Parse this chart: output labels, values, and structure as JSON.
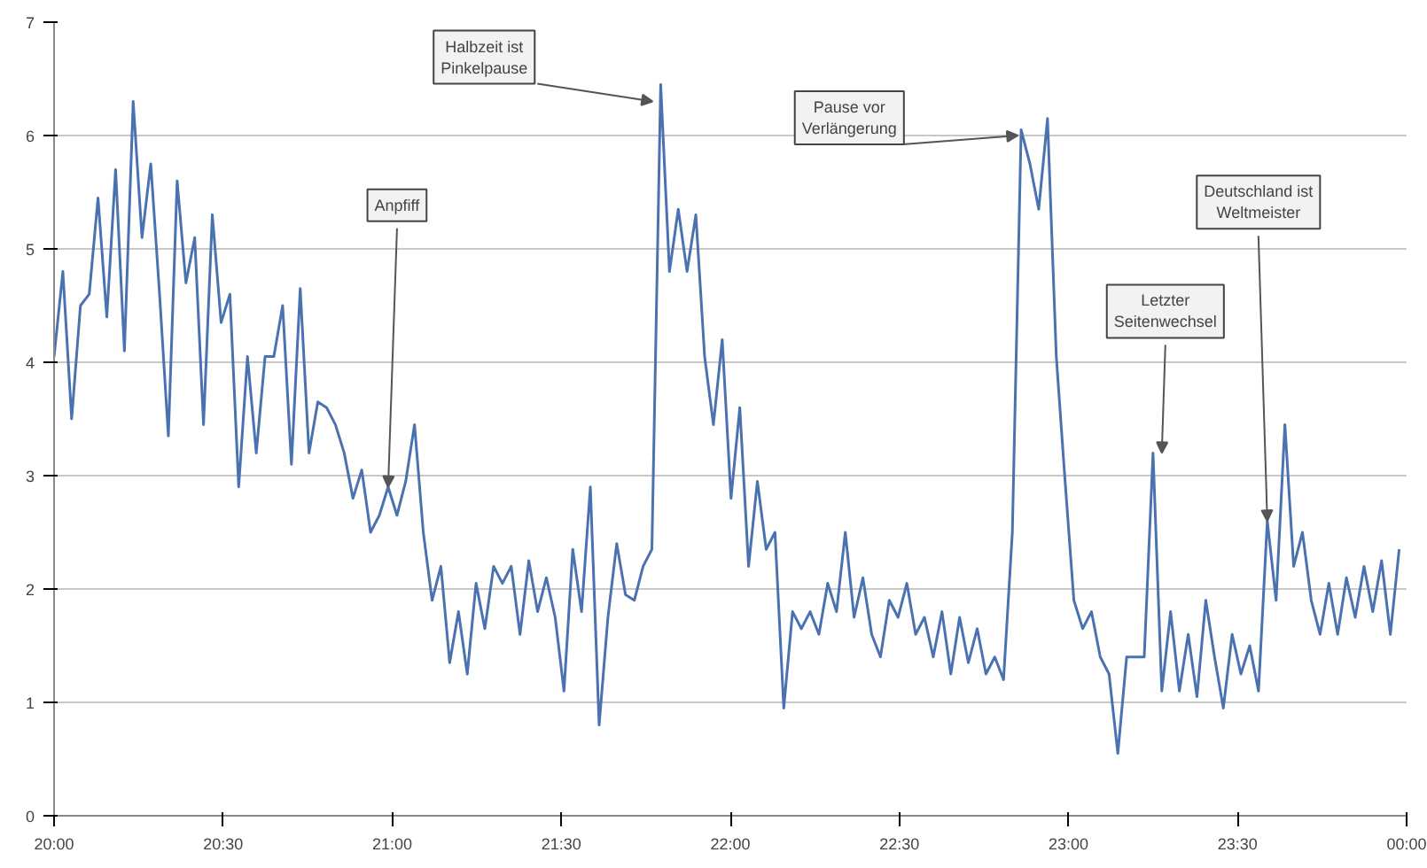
{
  "chart_data": {
    "type": "line",
    "x": [
      20.0,
      20.026,
      20.052,
      20.078,
      20.104,
      20.13,
      20.156,
      20.182,
      20.208,
      20.234,
      20.26,
      20.286,
      20.312,
      20.338,
      20.364,
      20.39,
      20.416,
      20.442,
      20.468,
      20.494,
      20.52,
      20.546,
      20.572,
      20.598,
      20.624,
      20.65,
      20.676,
      20.702,
      20.728,
      20.754,
      20.78,
      20.806,
      20.832,
      20.858,
      20.884,
      20.91,
      20.936,
      20.962,
      20.988,
      21.014,
      21.04,
      21.066,
      21.092,
      21.118,
      21.144,
      21.17,
      21.196,
      21.222,
      21.248,
      21.274,
      21.3,
      21.326,
      21.352,
      21.378,
      21.404,
      21.43,
      21.456,
      21.482,
      21.508,
      21.534,
      21.56,
      21.586,
      21.612,
      21.638,
      21.664,
      21.69,
      21.716,
      21.742,
      21.768,
      21.794,
      21.82,
      21.846,
      21.872,
      21.898,
      21.924,
      21.95,
      21.976,
      22.002,
      22.028,
      22.054,
      22.08,
      22.106,
      22.132,
      22.158,
      22.184,
      22.21,
      22.236,
      22.262,
      22.288,
      22.314,
      22.34,
      22.366,
      22.392,
      22.418,
      22.444,
      22.47,
      22.496,
      22.522,
      22.548,
      22.574,
      22.6,
      22.626,
      22.652,
      22.678,
      22.704,
      22.73,
      22.756,
      22.782,
      22.808,
      22.834,
      22.86,
      22.886,
      22.912,
      22.938,
      22.964,
      22.99,
      23.016,
      23.042,
      23.068,
      23.094,
      23.12,
      23.146,
      23.172,
      23.198,
      23.224,
      23.25,
      23.276,
      23.302,
      23.328,
      23.354,
      23.38,
      23.406,
      23.432,
      23.458,
      23.484,
      23.51,
      23.536,
      23.562,
      23.588,
      23.614,
      23.64,
      23.666,
      23.692,
      23.718,
      23.744,
      23.77,
      23.796,
      23.822,
      23.848,
      23.874,
      23.9,
      23.926,
      23.952,
      23.978
    ],
    "series": [
      {
        "color": "#4a72b0",
        "values": [
          4.05,
          4.8,
          3.5,
          4.5,
          4.6,
          5.45,
          4.4,
          5.7,
          4.1,
          6.3,
          5.1,
          5.75,
          4.6,
          3.35,
          5.6,
          4.7,
          5.1,
          3.45,
          5.3,
          4.35,
          4.6,
          2.9,
          4.05,
          3.2,
          4.05,
          4.05,
          4.5,
          3.1,
          4.65,
          3.2,
          3.65,
          3.6,
          3.45,
          3.2,
          2.8,
          3.05,
          2.5,
          2.65,
          2.9,
          2.65,
          2.95,
          3.45,
          2.5,
          1.9,
          2.2,
          1.35,
          1.8,
          1.25,
          2.05,
          1.65,
          2.2,
          2.05,
          2.2,
          1.6,
          2.25,
          1.8,
          2.1,
          1.75,
          1.1,
          2.35,
          1.8,
          2.9,
          0.8,
          1.75,
          2.4,
          1.95,
          1.9,
          2.2,
          2.35,
          6.45,
          4.8,
          5.35,
          4.8,
          5.3,
          4.05,
          3.45,
          4.2,
          2.8,
          3.6,
          2.2,
          2.95,
          2.35,
          2.5,
          0.95,
          1.8,
          1.65,
          1.8,
          1.6,
          2.05,
          1.8,
          2.5,
          1.75,
          2.1,
          1.6,
          1.4,
          1.9,
          1.75,
          2.05,
          1.6,
          1.75,
          1.4,
          1.8,
          1.25,
          1.75,
          1.35,
          1.65,
          1.25,
          1.4,
          1.2,
          2.5,
          6.05,
          5.75,
          5.35,
          6.15,
          4.05,
          2.95,
          1.9,
          1.65,
          1.8,
          1.4,
          1.25,
          0.55,
          1.4,
          1.4,
          1.4,
          3.2,
          1.1,
          1.8,
          1.1,
          1.6,
          1.05,
          1.9,
          1.4,
          0.95,
          1.6,
          1.25,
          1.5,
          1.1,
          2.6,
          1.9,
          3.45,
          2.2,
          2.5,
          1.9,
          1.6,
          2.05,
          1.6,
          2.1,
          1.75,
          2.2,
          1.8,
          2.25,
          1.6,
          2.35
        ]
      }
    ],
    "xlim": [
      20,
      24
    ],
    "xticks": [
      {
        "value": 20,
        "label": "20:00"
      },
      {
        "value": 20.5,
        "label": "20:30"
      },
      {
        "value": 21,
        "label": "21:00"
      },
      {
        "value": 21.5,
        "label": "21:30"
      },
      {
        "value": 22,
        "label": "22:00"
      },
      {
        "value": 22.5,
        "label": "22:30"
      },
      {
        "value": 23,
        "label": "23:00"
      },
      {
        "value": 23.5,
        "label": "23:30"
      },
      {
        "value": 24,
        "label": "00:00"
      }
    ],
    "ylim": [
      0,
      7
    ],
    "yticks": [
      0,
      1,
      2,
      3,
      4,
      5,
      6,
      7
    ],
    "grid": "y",
    "annotations": [
      {
        "text": "Anpfiff",
        "x": 20.988,
        "y": 2.9
      },
      {
        "text": "Halbzeit ist Pinkelpause",
        "x": 21.77,
        "y": 6.3
      },
      {
        "text": "Pause vor Verlängerung",
        "x": 22.85,
        "y": 6.0
      },
      {
        "text": "Letzter Seitenwechsel",
        "x": 23.276,
        "y": 3.2
      },
      {
        "text": "Deutschland ist Weltmeister",
        "x": 23.588,
        "y": 2.6
      }
    ]
  }
}
